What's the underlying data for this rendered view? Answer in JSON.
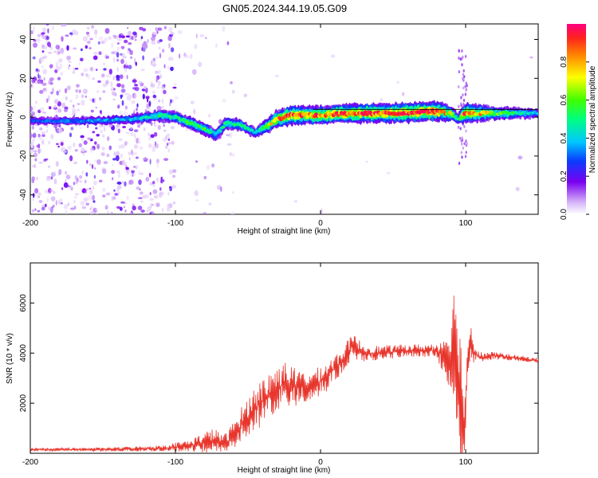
{
  "title": "GN05.2024.344.19.05.G09",
  "chart_data": [
    {
      "type": "heatmap",
      "title": "GN05.2024.344.19.05.G09",
      "xlabel": "Height of straight line (km)",
      "ylabel": "Frequency (Hz)",
      "xlim": [
        -200,
        150
      ],
      "ylim": [
        -50,
        48
      ],
      "x_ticks": [
        -200,
        -100,
        0,
        100
      ],
      "y_ticks": [
        -40,
        -20,
        0,
        20,
        40
      ],
      "colorbar": {
        "label": "Normalized spectral amplitude",
        "range": [
          0,
          1
        ],
        "ticks": [
          0.0,
          0.2,
          0.4,
          0.6,
          0.8
        ]
      },
      "ridge": {
        "x": [
          -200,
          -160,
          -130,
          -110,
          -100,
          -90,
          -80,
          -72,
          -65,
          -55,
          -45,
          -38,
          -30,
          -20,
          -10,
          0,
          20,
          50,
          80,
          90,
          95,
          100,
          120,
          150
        ],
        "freq": [
          -2,
          -2,
          -1,
          1,
          0,
          -3,
          -6,
          -9,
          -3,
          -4,
          -8,
          -5,
          -1,
          1,
          1,
          1,
          2,
          2,
          3,
          2,
          -1,
          2,
          2,
          2
        ],
        "amplitude": [
          0.25,
          0.3,
          0.35,
          0.45,
          0.45,
          0.5,
          0.5,
          0.4,
          0.45,
          0.45,
          0.35,
          0.55,
          0.75,
          0.85,
          0.8,
          0.8,
          0.85,
          0.85,
          0.9,
          0.6,
          0.4,
          0.85,
          0.55,
          0.35
        ]
      }
    },
    {
      "type": "line",
      "title": "",
      "xlabel": "Height of straight line (km)",
      "ylabel": "SNR (10 * v/v)",
      "xlim": [
        -200,
        150
      ],
      "ylim": [
        0,
        7600
      ],
      "x_ticks": [
        -200,
        -100,
        0,
        100
      ],
      "y_ticks": [
        2000,
        4000,
        6000
      ],
      "series": [
        {
          "name": "SNR",
          "color": "#e8352c",
          "x": [
            -200,
            -150,
            -110,
            -90,
            -75,
            -65,
            -55,
            -45,
            -35,
            -25,
            -15,
            -5,
            5,
            15,
            22,
            30,
            40,
            60,
            80,
            88,
            92,
            95,
            97,
            99,
            101,
            103,
            105,
            110,
            120,
            150
          ],
          "y": [
            150,
            150,
            200,
            300,
            500,
            400,
            1100,
            1800,
            2300,
            2800,
            2600,
            2700,
            3100,
            3700,
            4300,
            4000,
            4000,
            4100,
            4100,
            3900,
            4200,
            3600,
            1500,
            800,
            3000,
            4700,
            4100,
            3800,
            3900,
            3700
          ],
          "amplitude": [
            60,
            80,
            120,
            250,
            500,
            400,
            700,
            900,
            1000,
            900,
            700,
            600,
            600,
            500,
            500,
            350,
            300,
            250,
            280,
            1200,
            2500,
            3500,
            3000,
            2200,
            1500,
            800,
            500,
            250,
            150,
            100
          ]
        }
      ]
    }
  ]
}
